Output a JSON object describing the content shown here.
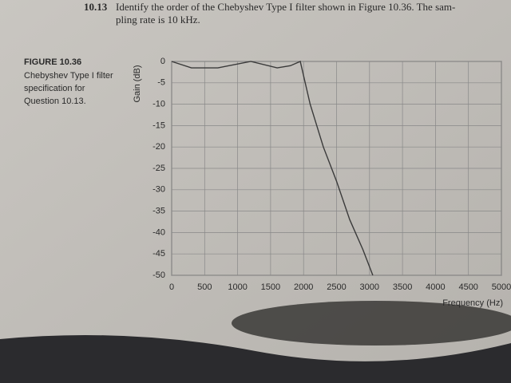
{
  "question": {
    "number": "10.13",
    "lines": [
      "Identify the order of the Chebyshev Type I filter shown in Figure 10.36. The sam-",
      "pling rate is 10 kHz."
    ]
  },
  "caption": {
    "label": "FIGURE 10.36",
    "lines": [
      "Chebyshev Type I filter",
      "specification for",
      "Question 10.13."
    ]
  },
  "chart_data": {
    "type": "line",
    "x_label": "Frequency (Hz)",
    "y_label": "Gain (dB)",
    "x": [
      0,
      300,
      700,
      1200,
      1600,
      1800,
      1950,
      2100,
      2300,
      2500,
      2700,
      2900,
      3050
    ],
    "series": [
      {
        "name": "Gain",
        "color": "#3a3a3a",
        "values": [
          0,
          -1.5,
          -1.5,
          0,
          -1.5,
          -1,
          0,
          -10,
          -20,
          -28,
          -37,
          -44,
          -50
        ]
      }
    ],
    "xlim": [
      0,
      5000
    ],
    "xticks": [
      0,
      500,
      1000,
      1500,
      2000,
      2500,
      3000,
      3500,
      4000,
      4500,
      5000
    ],
    "ylim": [
      -50,
      0
    ],
    "yticks": [
      0,
      -5,
      -10,
      -15,
      -20,
      -25,
      -30,
      -35,
      -40,
      -45,
      -50
    ],
    "grid": true
  }
}
